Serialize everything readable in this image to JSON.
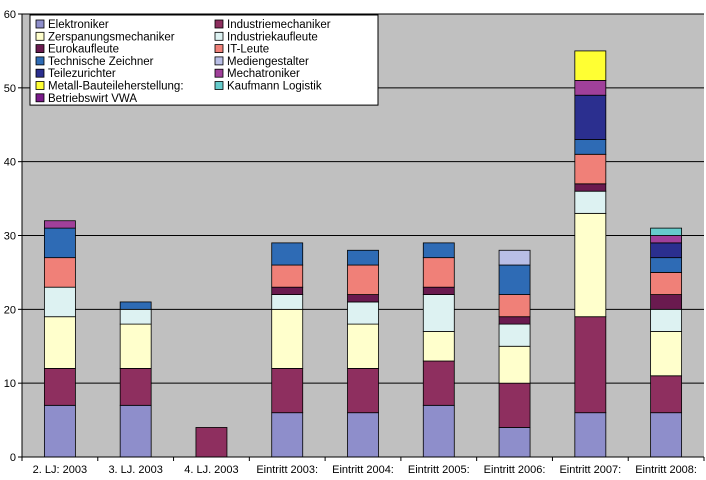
{
  "chart_data": {
    "type": "bar",
    "stacked": true,
    "categories": [
      "2. LJ: 2003",
      "3. LJ. 2003",
      "4. LJ. 2003",
      "Eintritt 2003:",
      "Eintritt 2004:",
      "Eintritt 2005:",
      "Eintritt 2006:",
      "Eintritt 2007:",
      "Eintritt 2008:"
    ],
    "ylim": [
      0,
      60
    ],
    "yticks": [
      0,
      10,
      20,
      30,
      40,
      50,
      60
    ],
    "grid": true,
    "legend_position": "top-left",
    "series": [
      {
        "name": "Elektroniker",
        "color": "#8E8ECB",
        "values": [
          7,
          7,
          0,
          6,
          6,
          7,
          4,
          6,
          6
        ]
      },
      {
        "name": "Industriemechaniker",
        "color": "#8E2F5F",
        "values": [
          5,
          5,
          4,
          6,
          6,
          6,
          6,
          13,
          5
        ]
      },
      {
        "name": "Zerspanungsmechaniker",
        "color": "#FFFFCC",
        "values": [
          7,
          6,
          0,
          8,
          6,
          4,
          5,
          14,
          6
        ]
      },
      {
        "name": "Industriekaufleute",
        "color": "#DDF2F2",
        "values": [
          4,
          2,
          0,
          2,
          3,
          5,
          3,
          3,
          3
        ]
      },
      {
        "name": "Eurokaufleute",
        "color": "#6A1A4F",
        "values": [
          0,
          0,
          0,
          1,
          1,
          1,
          1,
          1,
          2
        ]
      },
      {
        "name": "IT-Leute",
        "color": "#F08078",
        "values": [
          4,
          0,
          0,
          3,
          4,
          4,
          3,
          4,
          3
        ]
      },
      {
        "name": "Technische Zeichner",
        "color": "#2E6BB5",
        "values": [
          4,
          1,
          0,
          3,
          2,
          2,
          4,
          2,
          2
        ]
      },
      {
        "name": "Mediengestalter",
        "color": "#B9BEE6",
        "values": [
          0,
          0,
          0,
          0,
          0,
          0,
          2,
          0,
          0
        ]
      },
      {
        "name": "Teilezurichter",
        "color": "#2B2F8F",
        "values": [
          0,
          0,
          0,
          0,
          0,
          0,
          0,
          6,
          2
        ]
      },
      {
        "name": "Mechatroniker",
        "color": "#A0409A",
        "values": [
          1,
          0,
          0,
          0,
          0,
          0,
          0,
          2,
          1
        ]
      },
      {
        "name": "Metall-Bauteileherstellung:",
        "color": "#FFFF33",
        "values": [
          0,
          0,
          0,
          0,
          0,
          0,
          0,
          4,
          0
        ]
      },
      {
        "name": "Kaufmann Logistik",
        "color": "#66CCCC",
        "values": [
          0,
          0,
          0,
          0,
          0,
          0,
          0,
          0,
          1
        ]
      },
      {
        "name": "Betriebswirt VWA",
        "color": "#7A1A8A",
        "values": [
          0,
          0,
          0,
          0,
          0,
          0,
          0,
          0,
          0
        ]
      }
    ]
  }
}
